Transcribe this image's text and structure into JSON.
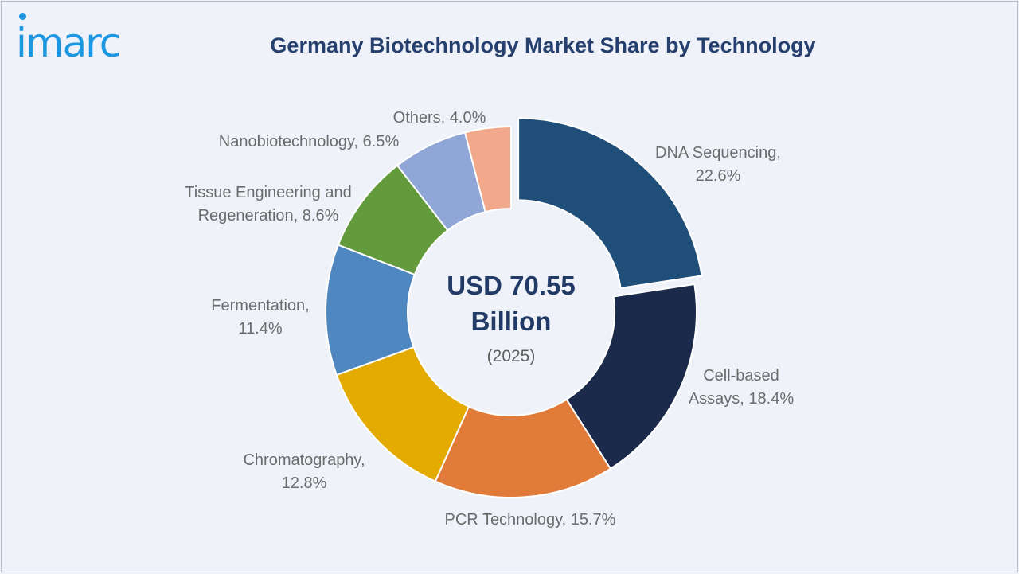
{
  "brand": {
    "logo_text": "imarc",
    "color": "#1d97e0"
  },
  "chart_data": {
    "type": "pie",
    "title": "Germany Biotechnology Market Share by Technology",
    "center_label": {
      "value_line1": "USD 70.55",
      "value_line2": "Billion",
      "year": "(2025)"
    },
    "unit": "%",
    "slices": [
      {
        "label": "DNA Sequencing",
        "value": 22.6,
        "display": "DNA Sequencing, 22.6%",
        "lines": [
          "DNA Sequencing,",
          "22.6%"
        ],
        "color": "#1f4e79",
        "exploded": true
      },
      {
        "label": "Cell-based Assays",
        "value": 18.4,
        "display": "Cell-based Assays, 18.4%",
        "lines": [
          "Cell-based",
          "Assays, 18.4%"
        ],
        "color": "#1b2a4a"
      },
      {
        "label": "PCR Technology",
        "value": 15.7,
        "display": "PCR Technology, 15.7%",
        "lines": [
          "PCR Technology, 15.7%"
        ],
        "color": "#e07b39"
      },
      {
        "label": "Chromatography",
        "value": 12.8,
        "display": "Chromatography, 12.8%",
        "lines": [
          "Chromatography,",
          "12.8%"
        ],
        "color": "#e3ab00"
      },
      {
        "label": "Fermentation",
        "value": 11.4,
        "display": "Fermentation, 11.4%",
        "lines": [
          "Fermentation,",
          "11.4%"
        ],
        "color": "#4f88c0"
      },
      {
        "label": "Tissue Engineering and Regeneration",
        "value": 8.6,
        "display": "Tissue Engineering and Regeneration, 8.6%",
        "lines": [
          "Tissue Engineering and",
          "Regeneration, 8.6%"
        ],
        "color": "#629a3c"
      },
      {
        "label": "Nanobiotechnology",
        "value": 6.5,
        "display": "Nanobiotechnology, 6.5%",
        "lines": [
          "Nanobiotechnology, 6.5%"
        ],
        "color": "#8fa6d6"
      },
      {
        "label": "Others",
        "value": 4.0,
        "display": "Others, 4.0%",
        "lines": [
          "Others, 4.0%"
        ],
        "color": "#f2a98b"
      }
    ]
  }
}
